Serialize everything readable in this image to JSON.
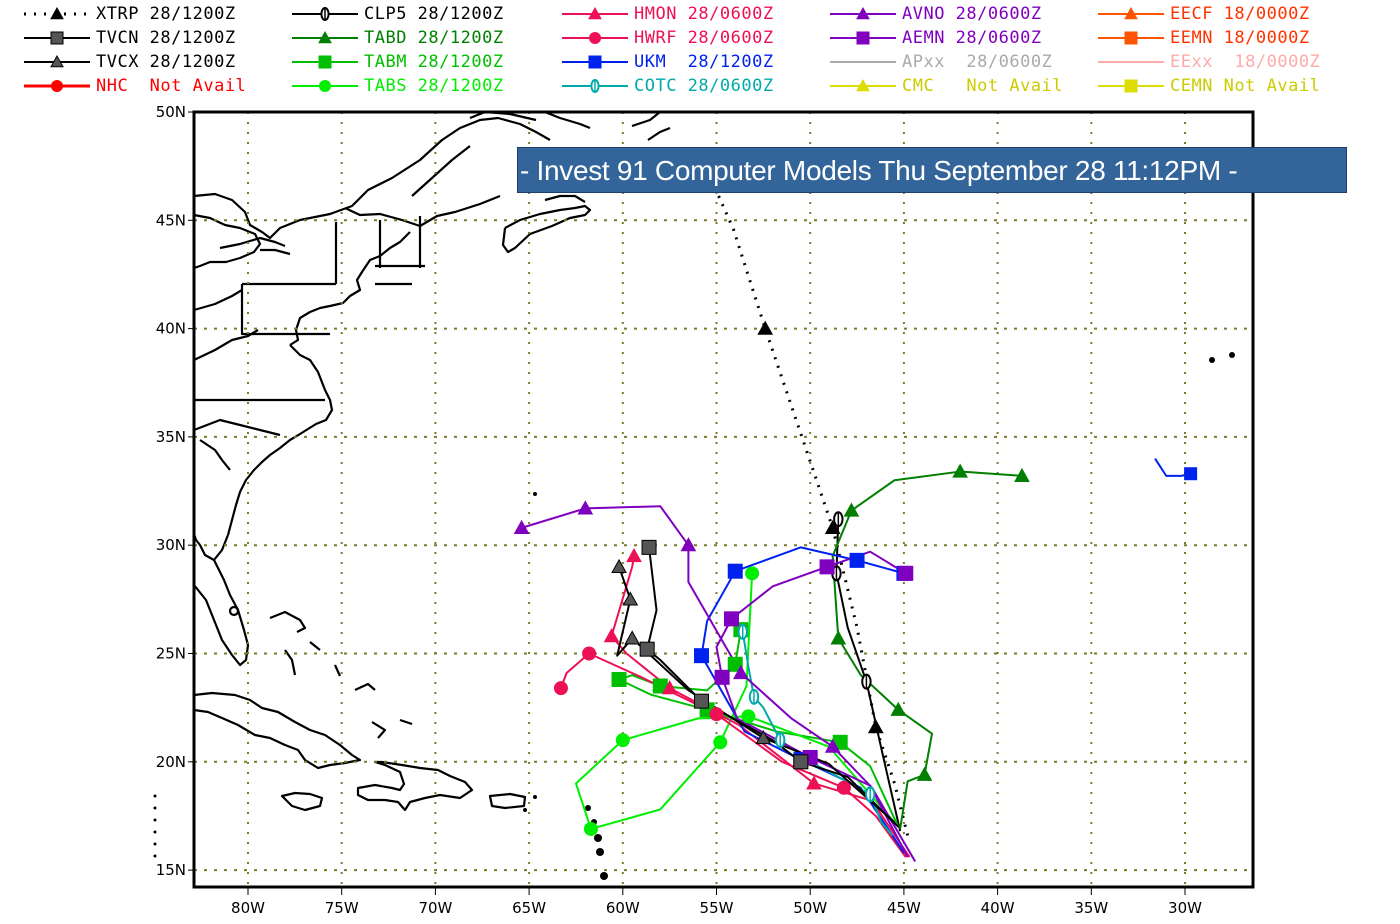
{
  "title": "- Invest 91 Computer Models Thu September 28 11:12PM -",
  "legend": [
    {
      "id": "XTRP",
      "label": "XTRP 28/1200Z",
      "color": "#000000",
      "text_color": "#000000",
      "marker": "triangle",
      "style": "dotted",
      "col": 0,
      "row": 0
    },
    {
      "id": "TVCN",
      "label": "TVCN 28/1200Z",
      "color": "#000000",
      "marker_color": "#555555",
      "text_color": "#000000",
      "marker": "square",
      "style": "solid",
      "col": 0,
      "row": 1
    },
    {
      "id": "TVCX",
      "label": "TVCX 28/1200Z",
      "color": "#000000",
      "marker_color": "#555555",
      "text_color": "#000000",
      "marker": "triangle",
      "style": "solid",
      "col": 0,
      "row": 2
    },
    {
      "id": "NHC",
      "label": "NHC  Not Avail",
      "color": "#ff0000",
      "text_color": "#ff0000",
      "marker": "circle",
      "style": "solid",
      "col": 0,
      "row": 3
    },
    {
      "id": "CLP5",
      "label": "CLP5 28/1200Z",
      "color": "#000000",
      "text_color": "#000000",
      "marker": "zero",
      "style": "solid",
      "col": 1,
      "row": 0
    },
    {
      "id": "TABD",
      "label": "TABD 28/1200Z",
      "color": "#007f00",
      "text_color": "#007f00",
      "marker": "triangle",
      "style": "solid",
      "col": 1,
      "row": 1
    },
    {
      "id": "TABM",
      "label": "TABM 28/1200Z",
      "color": "#00bf00",
      "text_color": "#00bf00",
      "marker": "square",
      "style": "solid",
      "col": 1,
      "row": 2
    },
    {
      "id": "TABS",
      "label": "TABS 28/1200Z",
      "color": "#00ee00",
      "text_color": "#00ee00",
      "marker": "circle",
      "style": "solid",
      "col": 1,
      "row": 3
    },
    {
      "id": "HMON",
      "label": "HMON 28/0600Z",
      "color": "#ee1055",
      "text_color": "#ee1055",
      "marker": "triangle",
      "style": "solid",
      "col": 2,
      "row": 0
    },
    {
      "id": "HWRF",
      "label": "HWRF 28/0600Z",
      "color": "#ee1055",
      "text_color": "#ee1055",
      "marker": "circle",
      "style": "solid",
      "col": 2,
      "row": 1
    },
    {
      "id": "UKM",
      "label": "UKM  28/1200Z",
      "color": "#0022ee",
      "text_color": "#0022ee",
      "marker": "square",
      "style": "solid",
      "col": 2,
      "row": 2
    },
    {
      "id": "COTC",
      "label": "COTC 28/0600Z",
      "color": "#00aaaa",
      "text_color": "#00aaaa",
      "marker": "zero",
      "style": "solid",
      "col": 2,
      "row": 3
    },
    {
      "id": "AVNO",
      "label": "AVNO 28/0600Z",
      "color": "#8000c0",
      "text_color": "#8000c0",
      "marker": "triangle",
      "style": "solid",
      "col": 3,
      "row": 0
    },
    {
      "id": "AEMN",
      "label": "AEMN 28/0600Z",
      "color": "#8000c0",
      "text_color": "#8000c0",
      "marker": "square",
      "style": "solid",
      "col": 3,
      "row": 1
    },
    {
      "id": "APxx",
      "label": "APxx  28/0600Z",
      "color": "#aaaaaa",
      "text_color": "#aaaaaa",
      "marker": "none",
      "style": "solid",
      "col": 3,
      "row": 2
    },
    {
      "id": "CMC",
      "label": "CMC   Not Avail",
      "color": "#dddd00",
      "text_color": "#cccc00",
      "marker": "triangle",
      "style": "solid",
      "col": 3,
      "row": 3
    },
    {
      "id": "EECF",
      "label": "EECF 18/0000Z",
      "color": "#ff5500",
      "text_color": "#ff3300",
      "marker": "triangle",
      "style": "solid",
      "col": 4,
      "row": 0
    },
    {
      "id": "EEMN",
      "label": "EEMN 18/0000Z",
      "color": "#ff5500",
      "text_color": "#ff3300",
      "marker": "square",
      "style": "solid",
      "col": 4,
      "row": 1
    },
    {
      "id": "EExx",
      "label": "EExx  18/0000Z",
      "color": "#ffaaaa",
      "text_color": "#ffaaaa",
      "marker": "none",
      "style": "solid",
      "col": 4,
      "row": 2
    },
    {
      "id": "CEMN",
      "label": "CEMN Not Avail",
      "color": "#dddd00",
      "text_color": "#cccc00",
      "marker": "square",
      "style": "solid",
      "col": 4,
      "row": 3
    }
  ],
  "map": {
    "lat_labels": [
      "50N",
      "45N",
      "40N",
      "35N",
      "30N",
      "25N",
      "20N",
      "15N"
    ],
    "lon_labels": [
      "80W",
      "75W",
      "70W",
      "65W",
      "60W",
      "55W",
      "50W",
      "45W",
      "40W",
      "35W",
      "30W"
    ],
    "grid_color": "#7a7a2a",
    "border_color": "#000000"
  },
  "chart_data": {
    "type": "map-tracks",
    "title": "- Invest 91 Computer Models Thu September 28 11:12PM -",
    "extent": {
      "lon_min": -83,
      "lon_max": -26.5,
      "lat_min": 14.2,
      "lat_max": 50
    },
    "lat_ticks": [
      50,
      45,
      40,
      35,
      30,
      25,
      20,
      15
    ],
    "lon_ticks": [
      -80,
      -75,
      -70,
      -65,
      -60,
      -55,
      -50,
      -45,
      -40,
      -35,
      -30
    ],
    "tracks": [
      {
        "model": "XTRP",
        "points": [
          [
            -44.8,
            16.6
          ],
          [
            -45.5,
            19.0
          ],
          [
            -46.5,
            21.6
          ],
          [
            -47.5,
            26.2
          ],
          [
            -48.8,
            30.8
          ],
          [
            -50.6,
            35.4
          ],
          [
            -52.4,
            40.0
          ],
          [
            -54.1,
            44.6
          ],
          [
            -55.6,
            47.5
          ]
        ]
      },
      {
        "model": "CLP5",
        "points": [
          [
            -45.2,
            16.8
          ],
          [
            -46.2,
            20.6
          ],
          [
            -47.0,
            23.7
          ],
          [
            -48.0,
            26.2
          ],
          [
            -48.6,
            28.7
          ],
          [
            -48.5,
            31.2
          ]
        ]
      },
      {
        "model": "TABD",
        "points": [
          [
            -45.2,
            16.9
          ],
          [
            -44.8,
            19.1
          ],
          [
            -43.9,
            19.4
          ],
          [
            -43.5,
            21.3
          ],
          [
            -45.3,
            22.4
          ],
          [
            -47.3,
            24.0
          ],
          [
            -48.5,
            25.7
          ],
          [
            -48.8,
            29.5
          ],
          [
            -47.8,
            31.6
          ],
          [
            -45.5,
            33.0
          ],
          [
            -42,
            33.4
          ],
          [
            -38.7,
            33.2
          ]
        ]
      },
      {
        "model": "TABM",
        "points": [
          [
            -45.3,
            17.0
          ],
          [
            -46.8,
            19.8
          ],
          [
            -48.4,
            20.9
          ],
          [
            -51.8,
            21.4
          ],
          [
            -55.5,
            22.4
          ],
          [
            -58.5,
            23.1
          ],
          [
            -60.2,
            23.8
          ],
          [
            -59.5,
            24.0
          ],
          [
            -58.0,
            23.5
          ],
          [
            -55.5,
            23.3
          ],
          [
            -54.0,
            24.5
          ],
          [
            -53.7,
            26.1
          ]
        ]
      },
      {
        "model": "TABS",
        "points": [
          [
            -45.5,
            17.2
          ],
          [
            -49.0,
            20.7
          ],
          [
            -53.3,
            22.1
          ],
          [
            -56.0,
            22.0
          ],
          [
            -60.0,
            21.0
          ],
          [
            -62.5,
            19.0
          ],
          [
            -61.7,
            16.9
          ],
          [
            -58.0,
            17.8
          ],
          [
            -54.8,
            20.9
          ],
          [
            -53.4,
            23.5
          ],
          [
            -53.1,
            28.7
          ]
        ]
      },
      {
        "model": "HMON",
        "points": [
          [
            -44.7,
            15.6
          ],
          [
            -46.7,
            18.2
          ],
          [
            -49.8,
            19.0
          ],
          [
            -53.8,
            21.7
          ],
          [
            -57.5,
            23.4
          ],
          [
            -59.8,
            25.0
          ],
          [
            -60.6,
            25.8
          ],
          [
            -59.5,
            29.0
          ],
          [
            -59.4,
            29.5
          ]
        ]
      },
      {
        "model": "HWRF",
        "points": [
          [
            -44.9,
            15.6
          ],
          [
            -46.5,
            17.5
          ],
          [
            -48.2,
            18.8
          ],
          [
            -51.5,
            20.0
          ],
          [
            -55.0,
            22.2
          ],
          [
            -59.0,
            23.9
          ],
          [
            -61.8,
            25.0
          ],
          [
            -63.0,
            24.1
          ],
          [
            -63.3,
            23.4
          ]
        ]
      },
      {
        "model": "UKM",
        "points": [
          [
            -45.0,
            15.8
          ],
          [
            -47.3,
            18.8
          ],
          [
            -50.5,
            20.1
          ],
          [
            -53.5,
            21.4
          ],
          [
            -55.8,
            24.9
          ],
          [
            -55.5,
            26.5
          ],
          [
            -54.0,
            28.8
          ],
          [
            -50.5,
            29.9
          ],
          [
            -47.5,
            29.3
          ],
          [
            -45.0,
            28.7
          ]
        ]
      },
      {
        "model": "UKM_east",
        "points": [
          [
            -31.6,
            34.0
          ],
          [
            -31.0,
            33.2
          ],
          [
            -30.2,
            33.2
          ],
          [
            -29.7,
            33.3
          ]
        ]
      },
      {
        "model": "COTC",
        "points": [
          [
            -45.6,
            16.6
          ],
          [
            -46.2,
            17.2
          ],
          [
            -46.8,
            18.5
          ],
          [
            -50.0,
            20.0
          ],
          [
            -51.6,
            21.0
          ],
          [
            -52.5,
            22.5
          ],
          [
            -53.0,
            23.0
          ],
          [
            -53.3,
            24.4
          ],
          [
            -53.6,
            26.0
          ]
        ]
      },
      {
        "model": "AVNO",
        "points": [
          [
            -44.4,
            15.4
          ],
          [
            -46.7,
            18.8
          ],
          [
            -48.8,
            20.7
          ],
          [
            -51.0,
            22.0
          ],
          [
            -53.7,
            24.1
          ],
          [
            -56.5,
            28.3
          ],
          [
            -56.5,
            30.0
          ],
          [
            -58.0,
            31.8
          ],
          [
            -62.0,
            31.7
          ],
          [
            -65.4,
            30.8
          ]
        ]
      },
      {
        "model": "AEMN",
        "points": [
          [
            -44.8,
            15.6
          ],
          [
            -46.8,
            18.9
          ],
          [
            -50.0,
            20.2
          ],
          [
            -53.9,
            22.0
          ],
          [
            -54.7,
            23.9
          ],
          [
            -55.0,
            25.3
          ],
          [
            -54.2,
            26.6
          ],
          [
            -52.0,
            28.1
          ],
          [
            -49.1,
            29.0
          ],
          [
            -46.8,
            29.7
          ],
          [
            -44.9,
            28.7
          ]
        ]
      },
      {
        "model": "TVCN",
        "points": [
          [
            -45.3,
            17.0
          ],
          [
            -48.0,
            19.3
          ],
          [
            -50.5,
            20.0
          ],
          [
            -52.0,
            21.0
          ],
          [
            -55.8,
            22.8
          ],
          [
            -58.0,
            24.7
          ],
          [
            -58.7,
            25.2
          ],
          [
            -58.2,
            27.0
          ],
          [
            -58.6,
            29.9
          ]
        ]
      },
      {
        "model": "TVCX",
        "points": [
          [
            -45.5,
            17.2
          ],
          [
            -49.0,
            19.9
          ],
          [
            -52.5,
            21.1
          ],
          [
            -56.5,
            23.3
          ],
          [
            -59.5,
            25.7
          ],
          [
            -60.3,
            24.9
          ],
          [
            -59.6,
            27.5
          ],
          [
            -60.2,
            29.0
          ]
        ]
      }
    ]
  }
}
